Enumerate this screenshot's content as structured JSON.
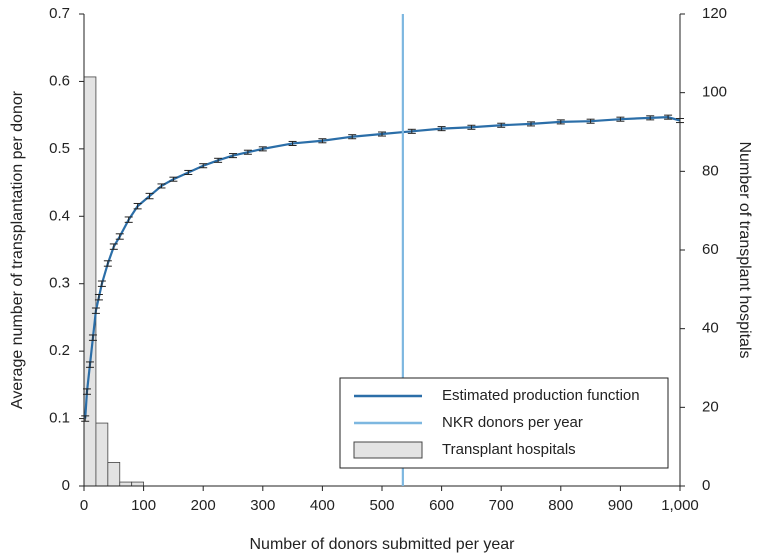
{
  "chart_data": {
    "type": "line",
    "xlabel": "Number of donors submitted per year",
    "ylabel": "Average number of transplantation per donor",
    "y2label": "Number of transplant hospitals",
    "xlim": [
      0,
      1000
    ],
    "xticks": [
      0,
      100,
      200,
      300,
      400,
      500,
      600,
      700,
      800,
      900,
      {
        "value": 1000,
        "label": "1,000"
      }
    ],
    "ylim": [
      0,
      0.7
    ],
    "yticks": [
      0,
      0.1,
      0.2,
      0.3,
      0.4,
      0.5,
      0.6,
      0.7
    ],
    "y2lim": [
      0,
      120
    ],
    "y2ticks": [
      0,
      20,
      40,
      60,
      80,
      100,
      120
    ],
    "legend": "lower right",
    "series": [
      {
        "name": "Estimated production function",
        "type": "line",
        "color": "#2b6ea8",
        "x": [
          2,
          5,
          10,
          15,
          20,
          25,
          30,
          40,
          50,
          60,
          75,
          90,
          110,
          130,
          150,
          175,
          200,
          225,
          250,
          275,
          300,
          350,
          400,
          450,
          500,
          550,
          600,
          650,
          700,
          750,
          800,
          850,
          900,
          950,
          980,
          1000
        ],
        "values": [
          0.1,
          0.14,
          0.18,
          0.22,
          0.26,
          0.28,
          0.3,
          0.33,
          0.355,
          0.37,
          0.395,
          0.415,
          0.43,
          0.445,
          0.455,
          0.465,
          0.475,
          0.483,
          0.49,
          0.495,
          0.5,
          0.508,
          0.512,
          0.518,
          0.522,
          0.526,
          0.53,
          0.532,
          0.535,
          0.537,
          0.54,
          0.541,
          0.544,
          0.546,
          0.547,
          0.542
        ],
        "errors": [
          0.004,
          0.004,
          0.004,
          0.004,
          0.004,
          0.004,
          0.004,
          0.004,
          0.004,
          0.004,
          0.004,
          0.004,
          0.004,
          0.003,
          0.003,
          0.003,
          0.003,
          0.003,
          0.003,
          0.003,
          0.003,
          0.003,
          0.003,
          0.003,
          0.003,
          0.003,
          0.003,
          0.003,
          0.003,
          0.003,
          0.003,
          0.003,
          0.003,
          0.003,
          0.003,
          0.003
        ]
      },
      {
        "name": "NKR donors per year",
        "type": "vline",
        "color": "#7db7e0",
        "x": 535
      }
    ],
    "histogram": {
      "name": "Transplant hospitals",
      "color": "#e3e3e3",
      "edgecolor": "#444",
      "axis": "y2",
      "bins": [
        0,
        20,
        40,
        60,
        80,
        100,
        120
      ],
      "counts": [
        104,
        16,
        6,
        1,
        1,
        0
      ]
    }
  }
}
